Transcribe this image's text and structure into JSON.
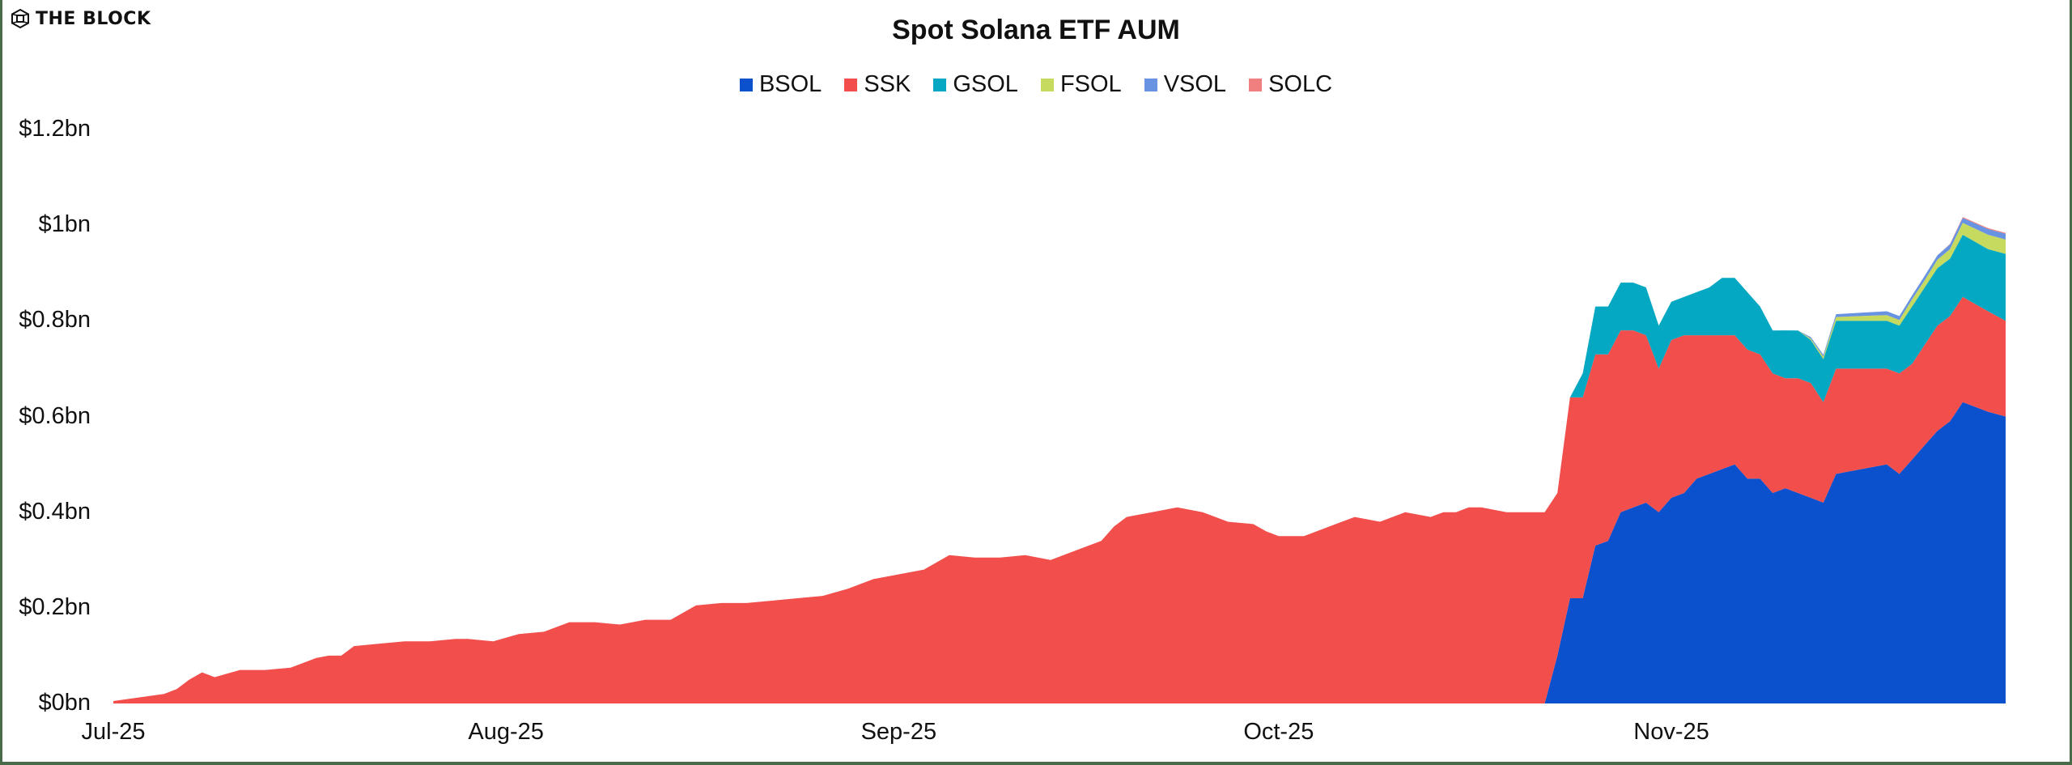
{
  "header": {
    "logo_text": "THE BLOCK"
  },
  "chart_data": {
    "type": "area",
    "stacked": true,
    "title": "Spot Solana ETF AUM",
    "xlabel": "",
    "ylabel": "",
    "ylim": [
      0,
      1.2
    ],
    "y_unit": "bn USD",
    "y_ticks": [
      "$0bn",
      "$0.2bn",
      "$0.4bn",
      "$0.6bn",
      "$0.8bn",
      "$1bn",
      "$1.2bn"
    ],
    "y_tick_values": [
      0,
      0.2,
      0.4,
      0.6,
      0.8,
      1.0,
      1.2
    ],
    "x_ticks": [
      "Jul-25",
      "Aug-25",
      "Sep-25",
      "Oct-25",
      "Nov-25"
    ],
    "x_tick_days": [
      0,
      31,
      62,
      92,
      123
    ],
    "x_range_days": [
      0,
      152
    ],
    "grid": false,
    "legend_position": "top",
    "legend": [
      "BSOL",
      "SSK",
      "GSOL",
      "FSOL",
      "VSOL",
      "SOLC"
    ],
    "colors": {
      "BSOL": "#0b50cc",
      "SSK": "#f14e4c",
      "GSOL": "#04a8c2",
      "FSOL": "#c5da5e",
      "VSOL": "#6893e2",
      "SOLC": "#f08080"
    },
    "x_days": [
      0,
      4,
      5,
      6,
      7,
      8,
      10,
      12,
      14,
      16,
      17,
      18,
      19,
      21,
      23,
      25,
      27,
      28,
      30,
      32,
      34,
      36,
      38,
      40,
      42,
      44,
      46,
      48,
      50,
      52,
      54,
      56,
      58,
      60,
      62,
      64,
      66,
      68,
      70,
      72,
      74,
      76,
      78,
      79,
      80,
      82,
      84,
      86,
      88,
      90,
      91,
      92,
      94,
      96,
      98,
      100,
      102,
      104,
      105,
      106,
      107,
      108,
      110,
      112,
      113,
      114,
      115,
      116,
      117,
      118,
      119,
      120,
      121,
      122,
      123,
      124,
      125,
      126,
      127,
      128,
      129,
      130,
      131,
      132,
      133,
      134,
      135,
      136,
      138,
      140,
      141,
      142,
      143,
      144,
      145,
      146,
      148,
      150,
      152
    ],
    "series": [
      {
        "name": "BSOL",
        "values": [
          0,
          0,
          0,
          0,
          0,
          0,
          0,
          0,
          0,
          0,
          0,
          0,
          0,
          0,
          0,
          0,
          0,
          0,
          0,
          0,
          0,
          0,
          0,
          0,
          0,
          0,
          0,
          0,
          0,
          0,
          0,
          0,
          0,
          0,
          0,
          0,
          0,
          0,
          0,
          0,
          0,
          0,
          0,
          0,
          0,
          0,
          0,
          0,
          0,
          0,
          0,
          0,
          0,
          0,
          0,
          0,
          0,
          0,
          0,
          0,
          0,
          0,
          0,
          0,
          0,
          0.1,
          0.22,
          0.22,
          0.33,
          0.34,
          0.4,
          0.41,
          0.42,
          0.4,
          0.43,
          0.44,
          0.47,
          0.48,
          0.49,
          0.5,
          0.47,
          0.47,
          0.44,
          0.45,
          0.44,
          0.43,
          0.42,
          0.48,
          0.49,
          0.5,
          0.48,
          0.51,
          0.54,
          0.57,
          0.59,
          0.63,
          0.61,
          0.6,
          0.6
        ]
      },
      {
        "name": "SSK",
        "values": [
          0.005,
          0.02,
          0.03,
          0.05,
          0.065,
          0.055,
          0.07,
          0.07,
          0.075,
          0.095,
          0.1,
          0.1,
          0.12,
          0.125,
          0.13,
          0.13,
          0.135,
          0.135,
          0.13,
          0.145,
          0.15,
          0.17,
          0.17,
          0.165,
          0.175,
          0.175,
          0.205,
          0.21,
          0.21,
          0.215,
          0.22,
          0.225,
          0.24,
          0.26,
          0.27,
          0.28,
          0.31,
          0.305,
          0.305,
          0.31,
          0.3,
          0.32,
          0.34,
          0.37,
          0.39,
          0.4,
          0.41,
          0.4,
          0.38,
          0.375,
          0.36,
          0.35,
          0.35,
          0.37,
          0.39,
          0.38,
          0.4,
          0.39,
          0.4,
          0.4,
          0.41,
          0.41,
          0.4,
          0.4,
          0.4,
          0.34,
          0.42,
          0.42,
          0.4,
          0.39,
          0.38,
          0.37,
          0.35,
          0.3,
          0.33,
          0.33,
          0.3,
          0.29,
          0.28,
          0.27,
          0.27,
          0.26,
          0.25,
          0.23,
          0.24,
          0.24,
          0.21,
          0.22,
          0.21,
          0.2,
          0.21,
          0.2,
          0.21,
          0.22,
          0.22,
          0.22,
          0.21,
          0.2,
          0.18
        ]
      },
      {
        "name": "GSOL",
        "values": [
          0,
          0,
          0,
          0,
          0,
          0,
          0,
          0,
          0,
          0,
          0,
          0,
          0,
          0,
          0,
          0,
          0,
          0,
          0,
          0,
          0,
          0,
          0,
          0,
          0,
          0,
          0,
          0,
          0,
          0,
          0,
          0,
          0,
          0,
          0,
          0,
          0,
          0,
          0,
          0,
          0,
          0,
          0,
          0,
          0,
          0,
          0,
          0,
          0,
          0,
          0,
          0,
          0,
          0,
          0,
          0,
          0,
          0,
          0,
          0,
          0,
          0,
          0,
          0,
          0,
          0,
          0,
          0.05,
          0.1,
          0.1,
          0.1,
          0.1,
          0.1,
          0.09,
          0.08,
          0.08,
          0.09,
          0.1,
          0.12,
          0.12,
          0.12,
          0.1,
          0.09,
          0.1,
          0.1,
          0.09,
          0.09,
          0.1,
          0.1,
          0.1,
          0.1,
          0.12,
          0.12,
          0.12,
          0.12,
          0.13,
          0.13,
          0.14,
          0.15
        ]
      },
      {
        "name": "FSOL",
        "values": [
          0,
          0,
          0,
          0,
          0,
          0,
          0,
          0,
          0,
          0,
          0,
          0,
          0,
          0,
          0,
          0,
          0,
          0,
          0,
          0,
          0,
          0,
          0,
          0,
          0,
          0,
          0,
          0,
          0,
          0,
          0,
          0,
          0,
          0,
          0,
          0,
          0,
          0,
          0,
          0,
          0,
          0,
          0,
          0,
          0,
          0,
          0,
          0,
          0,
          0,
          0,
          0,
          0,
          0,
          0,
          0,
          0,
          0,
          0,
          0,
          0,
          0,
          0,
          0,
          0,
          0,
          0,
          0,
          0,
          0,
          0,
          0,
          0,
          0,
          0,
          0,
          0,
          0,
          0,
          0,
          0,
          0,
          0,
          0,
          0,
          0.003,
          0.005,
          0.008,
          0.01,
          0.012,
          0.012,
          0.015,
          0.015,
          0.018,
          0.02,
          0.025,
          0.03,
          0.03,
          0.03
        ]
      },
      {
        "name": "VSOL",
        "values": [
          0,
          0,
          0,
          0,
          0,
          0,
          0,
          0,
          0,
          0,
          0,
          0,
          0,
          0,
          0,
          0,
          0,
          0,
          0,
          0,
          0,
          0,
          0,
          0,
          0,
          0,
          0,
          0,
          0,
          0,
          0,
          0,
          0,
          0,
          0,
          0,
          0,
          0,
          0,
          0,
          0,
          0,
          0,
          0,
          0,
          0,
          0,
          0,
          0,
          0,
          0,
          0,
          0,
          0,
          0,
          0,
          0,
          0,
          0,
          0,
          0,
          0,
          0,
          0,
          0,
          0,
          0,
          0,
          0,
          0,
          0,
          0,
          0,
          0,
          0,
          0,
          0,
          0,
          0,
          0,
          0,
          0,
          0,
          0,
          0,
          0.003,
          0.004,
          0.006,
          0.007,
          0.008,
          0.008,
          0.008,
          0.009,
          0.009,
          0.01,
          0.01,
          0.012,
          0.012,
          0.012
        ]
      },
      {
        "name": "SOLC",
        "values": [
          0,
          0,
          0,
          0,
          0,
          0,
          0,
          0,
          0,
          0,
          0,
          0,
          0,
          0,
          0,
          0,
          0,
          0,
          0,
          0,
          0,
          0,
          0,
          0,
          0,
          0,
          0,
          0,
          0,
          0,
          0,
          0,
          0,
          0,
          0,
          0,
          0,
          0,
          0,
          0,
          0,
          0,
          0,
          0,
          0,
          0,
          0,
          0,
          0,
          0,
          0,
          0,
          0,
          0,
          0,
          0,
          0,
          0,
          0,
          0,
          0,
          0,
          0,
          0,
          0,
          0,
          0,
          0,
          0,
          0,
          0,
          0,
          0,
          0,
          0,
          0,
          0,
          0,
          0,
          0,
          0,
          0,
          0,
          0,
          0,
          0,
          0,
          0,
          0,
          0,
          0,
          0,
          0,
          0,
          0.001,
          0.002,
          0.002,
          0.002,
          0.002
        ]
      }
    ]
  }
}
